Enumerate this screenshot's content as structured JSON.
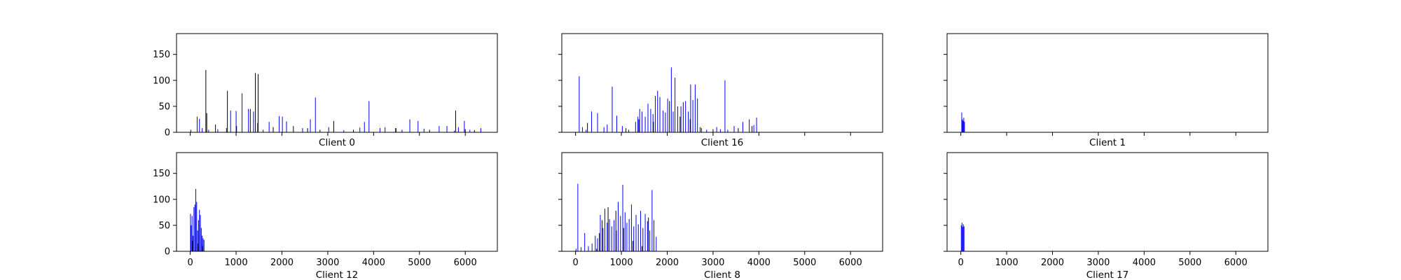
{
  "chart_data": [
    {
      "type": "bar",
      "xlabel": "Client 0",
      "ylim": [
        0,
        190
      ],
      "xlim": [
        -300,
        6700
      ],
      "yticks": [
        0,
        50,
        100,
        150
      ],
      "xticks": [
        0,
        1000,
        2000,
        3000,
        4000,
        5000,
        6000
      ],
      "show_xtick_labels": false,
      "series": [
        {
          "color": "#0000ff",
          "x": [
            150,
            200,
            260,
            400,
            600,
            790,
            880,
            1000,
            1130,
            1270,
            1380,
            1470,
            1590,
            1720,
            1940,
            2010,
            2100,
            2450,
            2620,
            2730,
            3020,
            3350,
            3700,
            3800,
            3900,
            4140,
            4250,
            4490,
            4620,
            4790,
            4970,
            5100,
            5430,
            5600,
            5760,
            5850,
            5980,
            6100,
            6340
          ],
          "values": [
            30,
            26,
            8,
            5,
            6,
            8,
            42,
            41,
            75,
            45,
            40,
            18,
            5,
            20,
            31,
            30,
            21,
            8,
            25,
            67,
            10,
            4,
            9,
            20,
            60,
            8,
            10,
            8,
            5,
            25,
            22,
            7,
            12,
            12,
            3,
            10,
            22,
            5,
            8
          ]
        },
        {
          "color": "#000000",
          "x": [
            10,
            340,
            360,
            550,
            810,
            1010,
            1310,
            1420,
            1480,
            1810,
            2250,
            2560,
            2830,
            3130,
            3560,
            4480,
            5220,
            5790,
            6000,
            6200
          ],
          "values": [
            5,
            120,
            37,
            15,
            80,
            12,
            45,
            114,
            112,
            10,
            12,
            8,
            5,
            22,
            5,
            8,
            5,
            42,
            6,
            4
          ]
        }
      ]
    },
    {
      "type": "bar",
      "xlabel": "Client 16",
      "ylim": [
        0,
        190
      ],
      "xlim": [
        -300,
        6700
      ],
      "yticks": [
        0,
        50,
        100,
        150
      ],
      "xticks": [
        0,
        1000,
        2000,
        3000,
        4000,
        5000,
        6000
      ],
      "show_xtick_labels": false,
      "series": [
        {
          "color": "#0000ff",
          "x": [
            80,
            150,
            230,
            350,
            480,
            620,
            690,
            800,
            900,
            1020,
            1160,
            1310,
            1360,
            1400,
            1450,
            1520,
            1580,
            1640,
            1690,
            1740,
            1790,
            1840,
            1910,
            1960,
            2010,
            2090,
            2130,
            2170,
            2230,
            2300,
            2350,
            2400,
            2460,
            2510,
            2560,
            2610,
            2660,
            2750,
            2860,
            3080,
            3160,
            3260,
            3320,
            3460,
            3650,
            3790,
            3890,
            3950
          ],
          "values": [
            108,
            10,
            5,
            40,
            37,
            10,
            15,
            88,
            32,
            12,
            5,
            20,
            30,
            45,
            40,
            30,
            55,
            45,
            35,
            70,
            80,
            68,
            42,
            38,
            65,
            125,
            40,
            105,
            50,
            50,
            58,
            60,
            40,
            92,
            62,
            92,
            65,
            8,
            5,
            10,
            6,
            100,
            5,
            12,
            20,
            25,
            14,
            28
          ]
        },
        {
          "color": "#000000",
          "x": [
            260,
            1100,
            1380,
            1700,
            2050,
            2280,
            2500,
            2720,
            3000,
            3550,
            3850
          ],
          "values": [
            18,
            8,
            25,
            20,
            60,
            30,
            25,
            10,
            6,
            8,
            12
          ]
        }
      ]
    },
    {
      "type": "bar",
      "xlabel": "Client 1",
      "ylim": [
        0,
        190
      ],
      "xlim": [
        -300,
        6700
      ],
      "yticks": [
        0,
        50,
        100,
        150
      ],
      "xticks": [
        0,
        1000,
        2000,
        3000,
        4000,
        5000,
        6000
      ],
      "show_xtick_labels": false,
      "series": [
        {
          "color": "#0000ff",
          "x": [
            20,
            35,
            50,
            65,
            80
          ],
          "values": [
            38,
            25,
            22,
            28,
            20
          ]
        }
      ]
    },
    {
      "type": "bar",
      "xlabel": "Client 12",
      "ylim": [
        0,
        190
      ],
      "xlim": [
        -300,
        6700
      ],
      "yticks": [
        0,
        50,
        100,
        150
      ],
      "xticks": [
        0,
        1000,
        2000,
        3000,
        4000,
        5000,
        6000
      ],
      "show_xtick_labels": true,
      "series": [
        {
          "color": "#0000ff",
          "x": [
            5,
            20,
            40,
            60,
            80,
            100,
            120,
            140,
            160,
            180,
            200,
            220,
            240,
            260,
            280,
            300
          ],
          "values": [
            72,
            50,
            68,
            30,
            85,
            90,
            120,
            95,
            40,
            60,
            80,
            70,
            45,
            30,
            25,
            22
          ]
        },
        {
          "color": "#000000",
          "x": [
            50,
            170,
            270
          ],
          "values": [
            20,
            15,
            10
          ]
        }
      ]
    },
    {
      "type": "bar",
      "xlabel": "Client 8",
      "ylim": [
        0,
        190
      ],
      "xlim": [
        -300,
        6700
      ],
      "yticks": [
        0,
        50,
        100,
        150
      ],
      "xticks": [
        0,
        1000,
        2000,
        3000,
        4000,
        5000,
        6000
      ],
      "show_xtick_labels": true,
      "series": [
        {
          "color": "#0000ff",
          "x": [
            10,
            50,
            120,
            200,
            280,
            360,
            430,
            480,
            540,
            600,
            640,
            690,
            740,
            790,
            840,
            890,
            930,
            980,
            1030,
            1080,
            1120,
            1170,
            1220,
            1270,
            1320,
            1370,
            1420,
            1470,
            1520,
            1570,
            1620,
            1670,
            1710,
            1760
          ],
          "values": [
            5,
            130,
            8,
            35,
            10,
            15,
            30,
            25,
            70,
            45,
            82,
            55,
            62,
            48,
            60,
            40,
            95,
            68,
            128,
            75,
            55,
            62,
            90,
            48,
            70,
            52,
            78,
            45,
            72,
            58,
            40,
            118,
            60,
            28
          ]
        },
        {
          "color": "#000000",
          "x": [
            460,
            520,
            580,
            710,
            880,
            1050,
            1250,
            1450,
            1590
          ],
          "values": [
            5,
            35,
            60,
            85,
            78,
            45,
            20,
            10,
            65
          ]
        }
      ]
    },
    {
      "type": "bar",
      "xlabel": "Client 17",
      "ylim": [
        0,
        190
      ],
      "xlim": [
        -300,
        6700
      ],
      "yticks": [
        0,
        50,
        100,
        150
      ],
      "xticks": [
        0,
        1000,
        2000,
        3000,
        4000,
        5000,
        6000
      ],
      "show_xtick_labels": true,
      "series": [
        {
          "color": "#0000ff",
          "x": [
            10,
            25,
            40,
            55,
            70
          ],
          "values": [
            50,
            55,
            47,
            52,
            48
          ]
        }
      ]
    }
  ]
}
